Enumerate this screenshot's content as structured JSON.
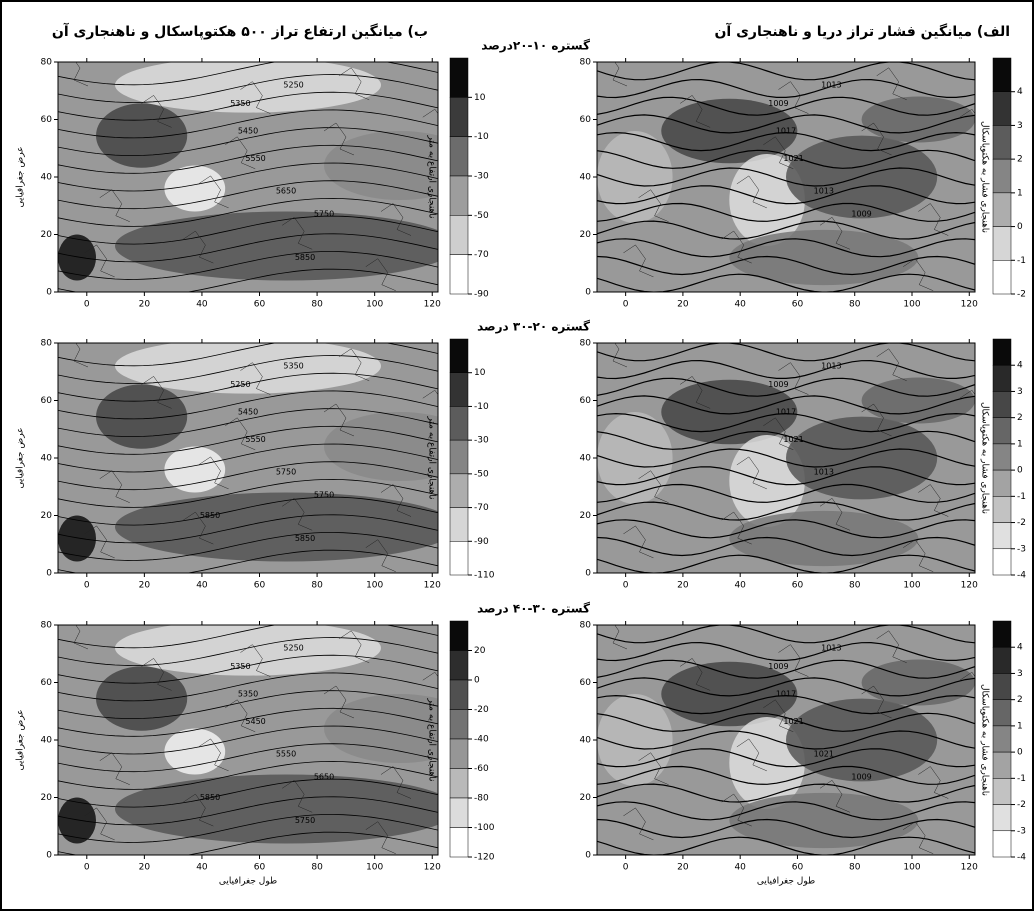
{
  "figure": {
    "title_left": "ب) میانگین ارتفاع تراز ۵۰۰ هکتوپاسکال و ناهنجاری آن",
    "title_right": "الف) میانگین فشار تراز دریا و ناهنجاری آن",
    "x_axis_label": "طول جغرافیایی",
    "y_axis_label": "عرض جغرافیایی",
    "height_anomaly_label": "ناهنجاری ارتفاع به متر",
    "pressure_anomaly_label": "ناهنجاری فشار به هکتوپاسکال",
    "xlim": [
      -10,
      122
    ],
    "ylim": [
      0,
      80
    ],
    "xticks": [
      0,
      20,
      40,
      60,
      80,
      100,
      120
    ],
    "yticks": [
      0,
      20,
      40,
      60,
      80
    ],
    "rows": [
      {
        "range_label": "گستره ۱۰-۲۰درصد",
        "left": {
          "clim": [
            -90,
            30
          ],
          "colorbar_ticks": [
            10,
            -10,
            -30,
            -50,
            -70,
            -90
          ],
          "contour_labels": [
            "5350",
            "5250",
            "5450",
            "5550",
            "5650",
            "5750",
            "5850"
          ]
        },
        "right": {
          "clim": [
            -2,
            5
          ],
          "colorbar_ticks": [
            4,
            3,
            2,
            1,
            0,
            -1,
            -2
          ],
          "contour_labels": [
            "1009",
            "1013",
            "1017",
            "1021",
            "1013",
            "1009"
          ]
        }
      },
      {
        "range_label": "گستره ۲۰-۳۰ درصد",
        "left": {
          "clim": [
            -110,
            30
          ],
          "colorbar_ticks": [
            10,
            -10,
            -30,
            -50,
            -70,
            -90,
            -110
          ],
          "contour_labels": [
            "5250",
            "5350",
            "5450",
            "5550",
            "5750",
            "5750",
            "5850",
            "5850"
          ]
        },
        "right": {
          "clim": [
            -4,
            5
          ],
          "colorbar_ticks": [
            4,
            3,
            2,
            1,
            0,
            -1,
            -2,
            -3,
            -4
          ],
          "contour_labels": [
            "1009",
            "1013",
            "1017",
            "1021",
            "1013"
          ]
        }
      },
      {
        "range_label": "گستره ۳۰-۴۰ درصد",
        "left": {
          "clim": [
            -120,
            40
          ],
          "colorbar_ticks": [
            20,
            0,
            -20,
            -40,
            -60,
            -80,
            -100,
            -120
          ],
          "contour_labels": [
            "5350",
            "5250",
            "5350",
            "5450",
            "5550",
            "5650",
            "5750",
            "5850"
          ]
        },
        "right": {
          "clim": [
            -4,
            5
          ],
          "colorbar_ticks": [
            4,
            3,
            2,
            1,
            0,
            -1,
            -2,
            -3,
            -4
          ],
          "contour_labels": [
            "1009",
            "1013",
            "1017",
            "1021",
            "1021",
            "1009"
          ]
        }
      }
    ]
  }
}
